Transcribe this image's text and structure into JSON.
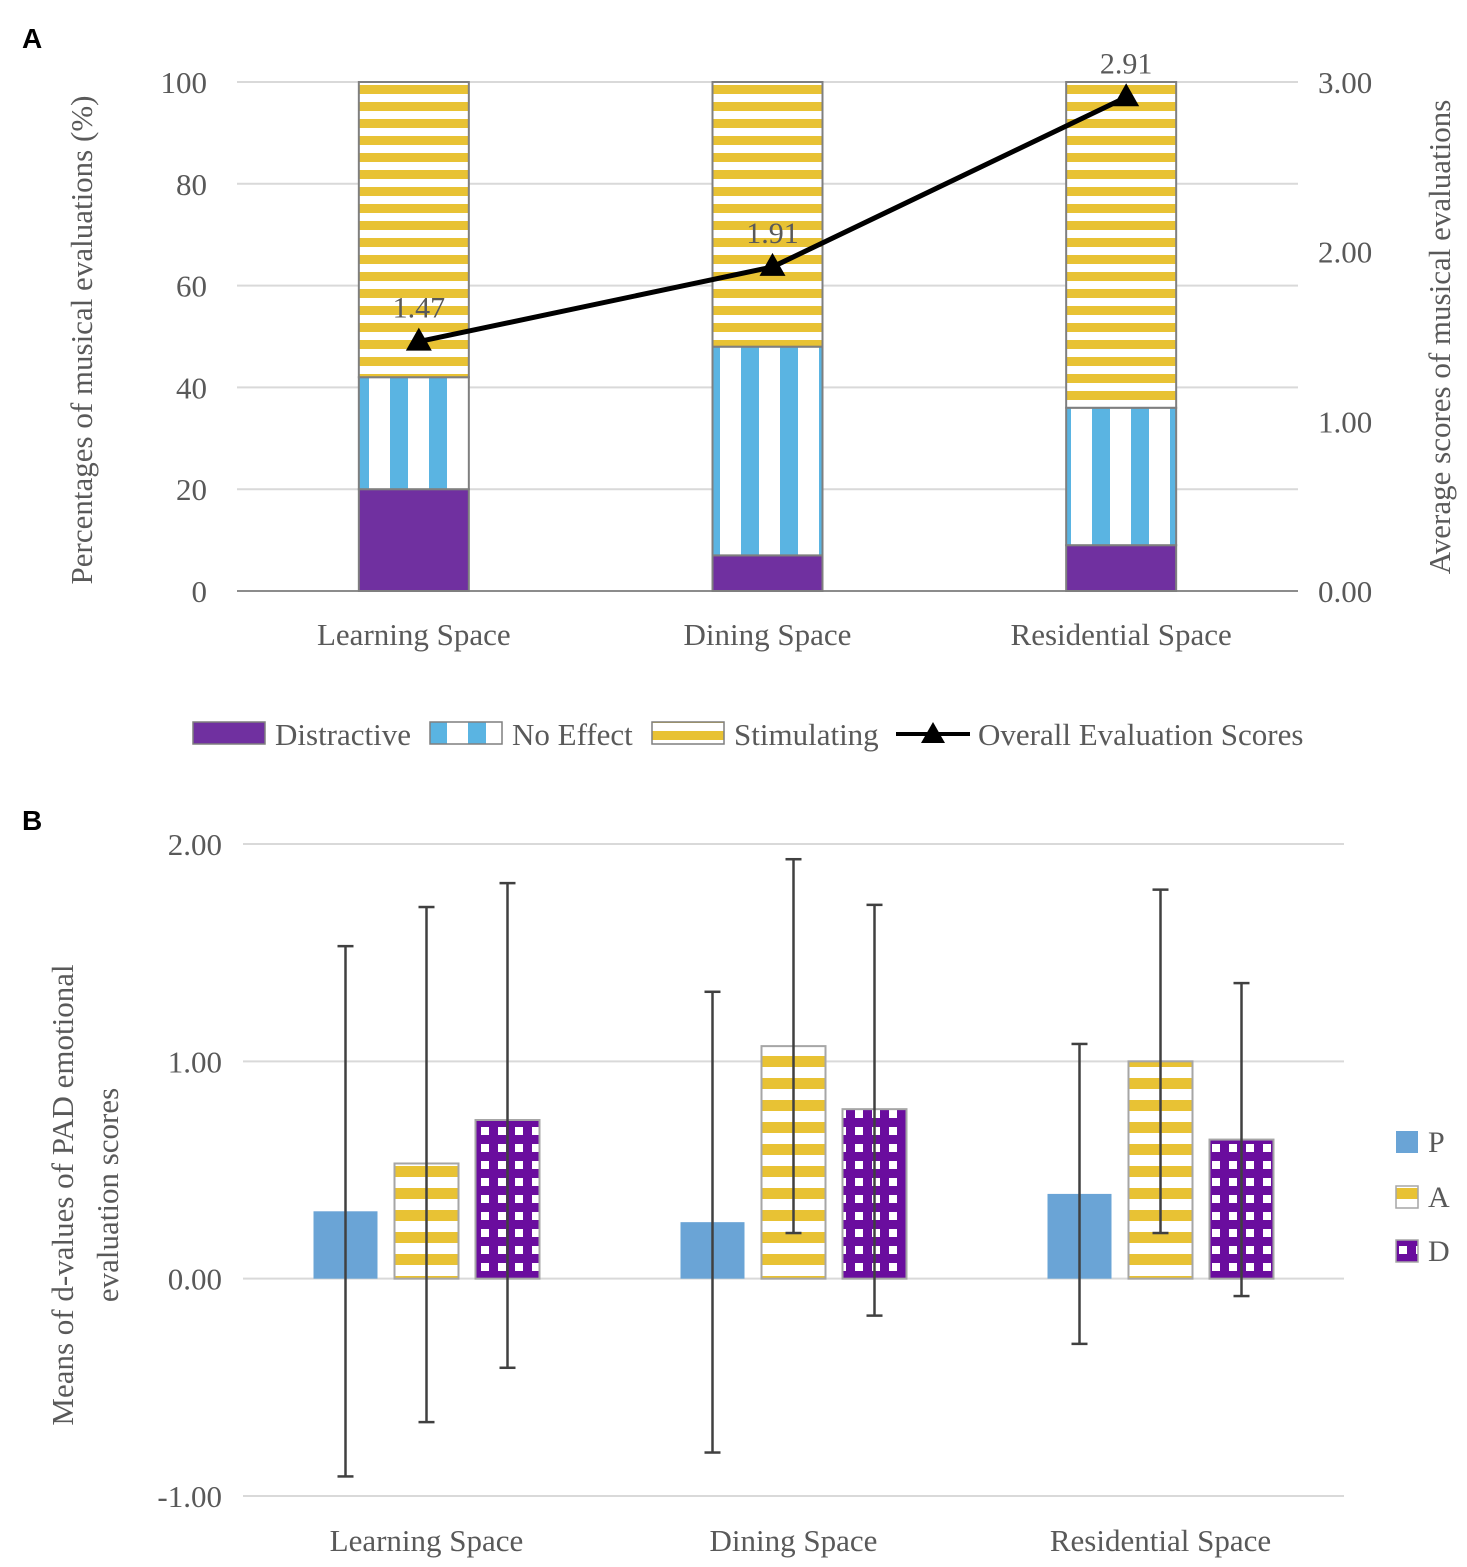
{
  "colors": {
    "distractive": "#7030a0",
    "no_effect": "#5ab4e2",
    "stimulating": "#e8c234",
    "line": "#000000",
    "P": "#6aa4d6",
    "A": "#e8c234",
    "D": "#6a0d9e",
    "grid": "#d9d9d9",
    "axis_text": "#595959",
    "error_bar": "#404040"
  },
  "chart_data": [
    {
      "panel": "A",
      "type": "bar",
      "stacked": true,
      "categories": [
        "Learning Space",
        "Dining Space",
        "Residential Space"
      ],
      "ylabel": "Percentages of musical evaluations (%)",
      "y2label": "Average scores of musical evaluations",
      "ylim": [
        0,
        100
      ],
      "y2lim": [
        0,
        3
      ],
      "yticks": [
        "0",
        "20",
        "40",
        "60",
        "80",
        "100"
      ],
      "y2ticks": [
        "0.00",
        "1.00",
        "2.00",
        "3.00"
      ],
      "series": [
        {
          "name": "Distractive",
          "values": [
            20,
            7,
            9
          ]
        },
        {
          "name": "No Effect",
          "values": [
            22,
            41,
            27
          ]
        },
        {
          "name": "Stimulating",
          "values": [
            58,
            52,
            64
          ]
        }
      ],
      "line": {
        "name": "Overall Evaluation Scores",
        "values": [
          1.47,
          1.91,
          2.91
        ],
        "labels": [
          "1.47",
          "1.91",
          "2.91"
        ]
      },
      "legend": [
        "Distractive",
        "No Effect",
        "Stimulating",
        "Overall Evaluation Scores"
      ],
      "legend_position": "bottom"
    },
    {
      "panel": "B",
      "type": "bar",
      "categories": [
        "Learning Space",
        "Dining Space",
        "Residential Space"
      ],
      "ylabel_lines": [
        "Means of d-values of PAD emotional",
        "evaluation scores"
      ],
      "ylim": [
        -1,
        2
      ],
      "yticks": [
        "-1.00",
        "0.00",
        "1.00",
        "2.00"
      ],
      "series": [
        {
          "name": "P",
          "values": [
            0.31,
            0.26,
            0.39
          ],
          "err_low": [
            -0.91,
            -0.8,
            -0.3
          ],
          "err_high": [
            1.53,
            1.32,
            1.08
          ]
        },
        {
          "name": "A",
          "values": [
            0.53,
            1.07,
            1.0
          ],
          "err_low": [
            -0.66,
            0.21,
            0.21
          ],
          "err_high": [
            1.71,
            1.93,
            1.79
          ]
        },
        {
          "name": "D",
          "values": [
            0.73,
            0.78,
            0.64
          ],
          "err_low": [
            -0.41,
            -0.17,
            -0.08
          ],
          "err_high": [
            1.82,
            1.72,
            1.36
          ]
        }
      ],
      "legend": [
        "P",
        "A",
        "D"
      ],
      "legend_position": "right"
    }
  ]
}
